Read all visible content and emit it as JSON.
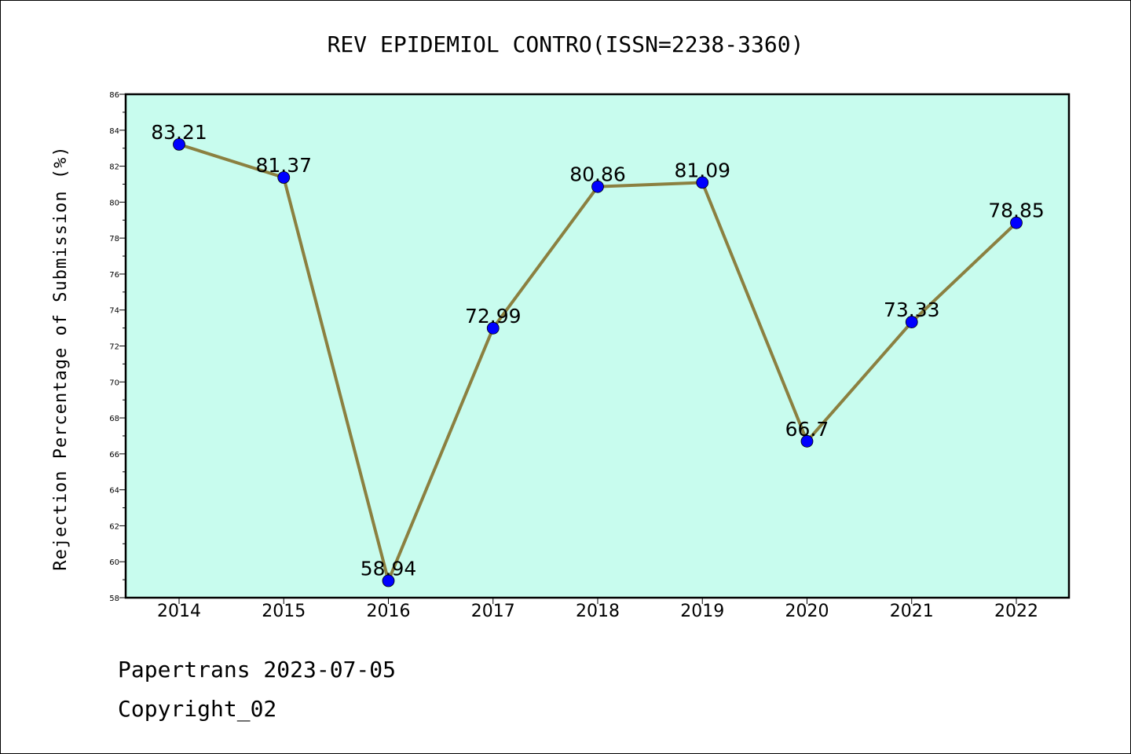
{
  "chart_data": {
    "type": "line",
    "title": "REV EPIDEMIOL CONTRO(ISSN=2238-3360)",
    "xlabel": "",
    "ylabel": "Rejection Percentage of Submission (%)",
    "categories": [
      "2014",
      "2015",
      "2016",
      "2017",
      "2018",
      "2019",
      "2020",
      "2021",
      "2022"
    ],
    "series": [
      {
        "values": [
          83.21,
          81.37,
          58.94,
          72.99,
          80.86,
          81.09,
          66.7,
          73.33,
          78.85
        ]
      }
    ],
    "data_labels": [
      "83.21",
      "81.37",
      "58.94",
      "72.99",
      "80.86",
      "81.09",
      "66.7",
      "73.33",
      "78.85"
    ],
    "ylim": [
      58,
      86
    ],
    "y_ticks": [
      58,
      60,
      62,
      64,
      66,
      68,
      70,
      72,
      74,
      76,
      78,
      80,
      82,
      84,
      86
    ],
    "grid": false,
    "legend": "none",
    "colors": {
      "plot_background": "#c8fcee",
      "line": "#8b8040",
      "marker": "#0000ff"
    }
  },
  "footer": {
    "line1": "Papertrans 2023-07-05",
    "line2": "Copyright_02"
  }
}
